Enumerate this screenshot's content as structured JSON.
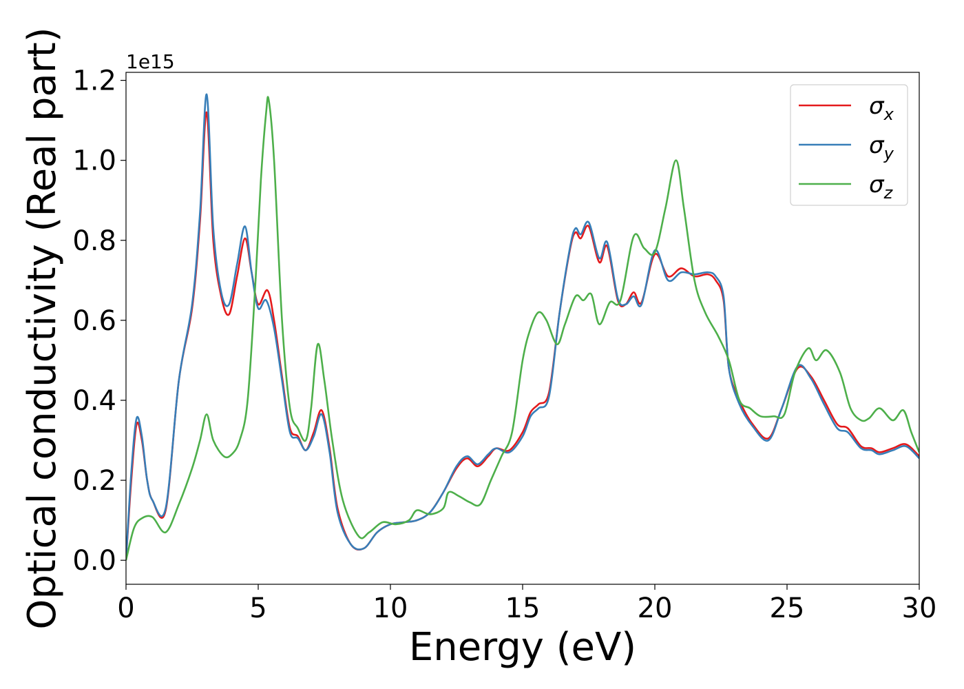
{
  "chart_data": {
    "type": "line",
    "xlabel": "Energy (eV)",
    "ylabel": "Optical conductivity (Real part)",
    "offset_label": "1e15",
    "xlim": [
      0,
      30
    ],
    "ylim": [
      -0.06,
      1.22
    ],
    "xticks": [
      0,
      5,
      10,
      15,
      20,
      25,
      30
    ],
    "xtick_labels": [
      "0",
      "5",
      "10",
      "15",
      "20",
      "25",
      "30"
    ],
    "yticks": [
      0.0,
      0.2,
      0.4,
      0.6,
      0.8,
      1.0,
      1.2
    ],
    "ytick_labels": [
      "0.0",
      "0.2",
      "0.4",
      "0.6",
      "0.8",
      "1.0",
      "1.2"
    ],
    "legend_position": "upper-right",
    "grid": false,
    "series": [
      {
        "name": "σx",
        "name_base": "σ",
        "name_sub": "x",
        "color": "#e41a1c",
        "points": [
          [
            0,
            0
          ],
          [
            0.2,
            0.2
          ],
          [
            0.4,
            0.34
          ],
          [
            0.6,
            0.3
          ],
          [
            0.8,
            0.2
          ],
          [
            1.0,
            0.15
          ],
          [
            1.5,
            0.125
          ],
          [
            2.0,
            0.45
          ],
          [
            2.5,
            0.63
          ],
          [
            2.8,
            0.85
          ],
          [
            3.05,
            1.12
          ],
          [
            3.3,
            0.8
          ],
          [
            3.6,
            0.66
          ],
          [
            3.9,
            0.615
          ],
          [
            4.2,
            0.71
          ],
          [
            4.5,
            0.805
          ],
          [
            4.75,
            0.72
          ],
          [
            5.0,
            0.64
          ],
          [
            5.35,
            0.675
          ],
          [
            5.6,
            0.6
          ],
          [
            5.9,
            0.46
          ],
          [
            6.2,
            0.33
          ],
          [
            6.5,
            0.31
          ],
          [
            6.8,
            0.275
          ],
          [
            7.1,
            0.32
          ],
          [
            7.4,
            0.375
          ],
          [
            7.7,
            0.28
          ],
          [
            8.0,
            0.13
          ],
          [
            8.5,
            0.04
          ],
          [
            9.0,
            0.03
          ],
          [
            9.5,
            0.07
          ],
          [
            10.0,
            0.09
          ],
          [
            10.5,
            0.095
          ],
          [
            11.0,
            0.1
          ],
          [
            11.5,
            0.12
          ],
          [
            12.0,
            0.17
          ],
          [
            12.5,
            0.23
          ],
          [
            12.9,
            0.255
          ],
          [
            13.3,
            0.235
          ],
          [
            13.7,
            0.26
          ],
          [
            14.0,
            0.28
          ],
          [
            14.5,
            0.275
          ],
          [
            15.0,
            0.32
          ],
          [
            15.3,
            0.37
          ],
          [
            15.6,
            0.39
          ],
          [
            16.0,
            0.42
          ],
          [
            16.4,
            0.62
          ],
          [
            16.8,
            0.78
          ],
          [
            17.0,
            0.82
          ],
          [
            17.2,
            0.805
          ],
          [
            17.5,
            0.835
          ],
          [
            17.9,
            0.745
          ],
          [
            18.2,
            0.785
          ],
          [
            18.6,
            0.65
          ],
          [
            18.9,
            0.64
          ],
          [
            19.2,
            0.67
          ],
          [
            19.5,
            0.645
          ],
          [
            20.0,
            0.765
          ],
          [
            20.5,
            0.71
          ],
          [
            21.0,
            0.73
          ],
          [
            21.5,
            0.71
          ],
          [
            22.0,
            0.715
          ],
          [
            22.3,
            0.7
          ],
          [
            22.6,
            0.65
          ],
          [
            22.8,
            0.48
          ],
          [
            23.2,
            0.4
          ],
          [
            23.7,
            0.34
          ],
          [
            24.3,
            0.305
          ],
          [
            24.8,
            0.38
          ],
          [
            25.4,
            0.48
          ],
          [
            25.9,
            0.46
          ],
          [
            26.4,
            0.4
          ],
          [
            26.9,
            0.34
          ],
          [
            27.3,
            0.33
          ],
          [
            27.8,
            0.285
          ],
          [
            28.2,
            0.28
          ],
          [
            28.5,
            0.27
          ],
          [
            29.0,
            0.28
          ],
          [
            29.5,
            0.29
          ],
          [
            30.0,
            0.26
          ]
        ]
      },
      {
        "name": "σy",
        "name_base": "σ",
        "name_sub": "y",
        "color": "#377eb8",
        "points": [
          [
            0,
            0
          ],
          [
            0.2,
            0.22
          ],
          [
            0.4,
            0.355
          ],
          [
            0.6,
            0.31
          ],
          [
            0.8,
            0.2
          ],
          [
            1.0,
            0.15
          ],
          [
            1.5,
            0.13
          ],
          [
            2.0,
            0.45
          ],
          [
            2.5,
            0.64
          ],
          [
            2.8,
            0.87
          ],
          [
            3.05,
            1.165
          ],
          [
            3.3,
            0.83
          ],
          [
            3.6,
            0.67
          ],
          [
            3.9,
            0.64
          ],
          [
            4.2,
            0.74
          ],
          [
            4.5,
            0.835
          ],
          [
            4.75,
            0.72
          ],
          [
            5.0,
            0.63
          ],
          [
            5.3,
            0.65
          ],
          [
            5.6,
            0.58
          ],
          [
            5.9,
            0.45
          ],
          [
            6.2,
            0.32
          ],
          [
            6.5,
            0.305
          ],
          [
            6.8,
            0.275
          ],
          [
            7.1,
            0.31
          ],
          [
            7.4,
            0.365
          ],
          [
            7.7,
            0.27
          ],
          [
            8.0,
            0.12
          ],
          [
            8.5,
            0.04
          ],
          [
            9.0,
            0.03
          ],
          [
            9.5,
            0.07
          ],
          [
            10.0,
            0.09
          ],
          [
            10.5,
            0.095
          ],
          [
            11.0,
            0.1
          ],
          [
            11.5,
            0.12
          ],
          [
            12.0,
            0.17
          ],
          [
            12.5,
            0.235
          ],
          [
            12.9,
            0.26
          ],
          [
            13.3,
            0.24
          ],
          [
            13.7,
            0.265
          ],
          [
            14.0,
            0.28
          ],
          [
            14.5,
            0.27
          ],
          [
            15.0,
            0.31
          ],
          [
            15.3,
            0.36
          ],
          [
            15.6,
            0.38
          ],
          [
            16.0,
            0.41
          ],
          [
            16.4,
            0.62
          ],
          [
            16.8,
            0.785
          ],
          [
            17.0,
            0.83
          ],
          [
            17.2,
            0.815
          ],
          [
            17.5,
            0.845
          ],
          [
            17.9,
            0.755
          ],
          [
            18.2,
            0.795
          ],
          [
            18.6,
            0.655
          ],
          [
            18.9,
            0.64
          ],
          [
            19.2,
            0.66
          ],
          [
            19.5,
            0.64
          ],
          [
            20.0,
            0.775
          ],
          [
            20.5,
            0.7
          ],
          [
            21.0,
            0.72
          ],
          [
            21.5,
            0.715
          ],
          [
            22.0,
            0.72
          ],
          [
            22.3,
            0.71
          ],
          [
            22.6,
            0.66
          ],
          [
            22.8,
            0.48
          ],
          [
            23.2,
            0.39
          ],
          [
            23.7,
            0.335
          ],
          [
            24.3,
            0.3
          ],
          [
            24.8,
            0.38
          ],
          [
            25.4,
            0.485
          ],
          [
            25.9,
            0.455
          ],
          [
            26.4,
            0.39
          ],
          [
            26.9,
            0.33
          ],
          [
            27.3,
            0.32
          ],
          [
            27.8,
            0.28
          ],
          [
            28.2,
            0.275
          ],
          [
            28.5,
            0.265
          ],
          [
            29.0,
            0.275
          ],
          [
            29.5,
            0.285
          ],
          [
            30.0,
            0.255
          ]
        ]
      },
      {
        "name": "σz",
        "name_base": "σ",
        "name_sub": "z",
        "color": "#4daf4a",
        "points": [
          [
            0,
            0
          ],
          [
            0.3,
            0.08
          ],
          [
            0.6,
            0.105
          ],
          [
            1.0,
            0.108
          ],
          [
            1.5,
            0.07
          ],
          [
            2.0,
            0.14
          ],
          [
            2.5,
            0.23
          ],
          [
            2.8,
            0.3
          ],
          [
            3.05,
            0.365
          ],
          [
            3.3,
            0.3
          ],
          [
            3.7,
            0.26
          ],
          [
            4.0,
            0.265
          ],
          [
            4.3,
            0.3
          ],
          [
            4.6,
            0.4
          ],
          [
            4.9,
            0.7
          ],
          [
            5.1,
            0.95
          ],
          [
            5.3,
            1.12
          ],
          [
            5.4,
            1.15
          ],
          [
            5.6,
            1.0
          ],
          [
            5.9,
            0.6
          ],
          [
            6.2,
            0.38
          ],
          [
            6.5,
            0.33
          ],
          [
            6.8,
            0.3
          ],
          [
            7.0,
            0.38
          ],
          [
            7.25,
            0.54
          ],
          [
            7.5,
            0.45
          ],
          [
            7.8,
            0.3
          ],
          [
            8.2,
            0.15
          ],
          [
            8.8,
            0.06
          ],
          [
            9.2,
            0.07
          ],
          [
            9.7,
            0.095
          ],
          [
            10.2,
            0.09
          ],
          [
            10.7,
            0.1
          ],
          [
            11.0,
            0.125
          ],
          [
            11.5,
            0.115
          ],
          [
            12.0,
            0.13
          ],
          [
            12.2,
            0.17
          ],
          [
            12.6,
            0.16
          ],
          [
            13.0,
            0.145
          ],
          [
            13.4,
            0.14
          ],
          [
            13.8,
            0.2
          ],
          [
            14.2,
            0.26
          ],
          [
            14.6,
            0.32
          ],
          [
            15.0,
            0.5
          ],
          [
            15.3,
            0.58
          ],
          [
            15.6,
            0.62
          ],
          [
            15.9,
            0.6
          ],
          [
            16.3,
            0.54
          ],
          [
            16.6,
            0.59
          ],
          [
            17.0,
            0.66
          ],
          [
            17.3,
            0.65
          ],
          [
            17.6,
            0.665
          ],
          [
            17.9,
            0.59
          ],
          [
            18.3,
            0.645
          ],
          [
            18.7,
            0.65
          ],
          [
            19.2,
            0.81
          ],
          [
            19.6,
            0.78
          ],
          [
            20.0,
            0.77
          ],
          [
            20.4,
            0.88
          ],
          [
            20.8,
            1.0
          ],
          [
            21.1,
            0.88
          ],
          [
            21.5,
            0.7
          ],
          [
            21.9,
            0.62
          ],
          [
            22.4,
            0.56
          ],
          [
            22.8,
            0.5
          ],
          [
            23.2,
            0.4
          ],
          [
            23.6,
            0.38
          ],
          [
            24.0,
            0.36
          ],
          [
            24.5,
            0.36
          ],
          [
            24.9,
            0.365
          ],
          [
            25.3,
            0.47
          ],
          [
            25.8,
            0.53
          ],
          [
            26.1,
            0.5
          ],
          [
            26.5,
            0.525
          ],
          [
            27.0,
            0.47
          ],
          [
            27.4,
            0.38
          ],
          [
            27.8,
            0.35
          ],
          [
            28.1,
            0.355
          ],
          [
            28.5,
            0.38
          ],
          [
            29.0,
            0.35
          ],
          [
            29.4,
            0.375
          ],
          [
            29.7,
            0.32
          ],
          [
            30.0,
            0.27
          ]
        ]
      }
    ]
  }
}
